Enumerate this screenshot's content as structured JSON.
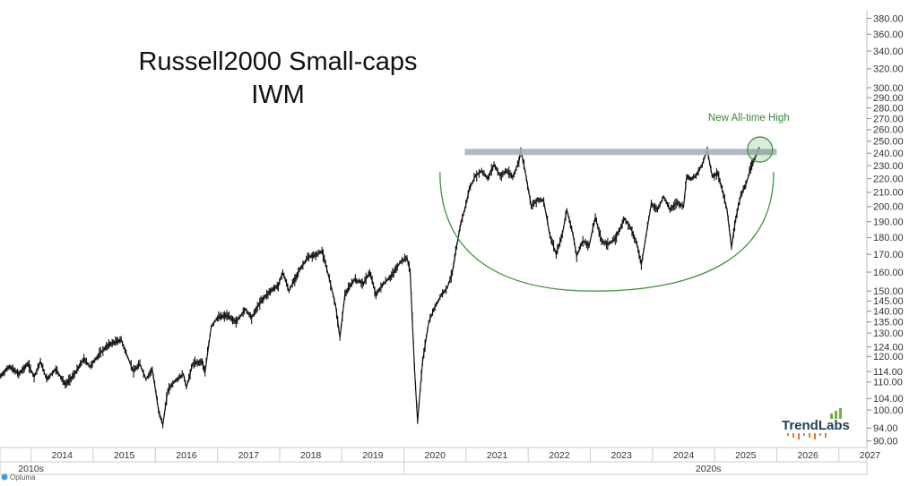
{
  "chart_data": {
    "type": "line",
    "title": "Russell2000 Small-caps",
    "subtitle": "IWM",
    "y_scale": "log",
    "ylim": [
      88,
      390
    ],
    "xlim": [
      2013.5,
      2027.45
    ],
    "y_ticks": [
      90,
      94,
      100,
      104,
      110,
      114,
      120,
      124,
      130,
      135,
      140,
      145,
      150,
      160,
      170,
      180,
      190,
      200,
      210,
      220,
      230,
      240,
      250,
      260,
      270,
      280,
      290,
      300,
      320,
      340,
      360,
      380
    ],
    "y_tick_labels": [
      "90.00",
      "94.00",
      "100.00",
      "104.00",
      "110.00",
      "114.00",
      "120.00",
      "124.00",
      "130.00",
      "135.00",
      "140.00",
      "145.00",
      "150.00",
      "160.00",
      "170.00",
      "180.00",
      "190.00",
      "200.00",
      "210.00",
      "220.00",
      "230.00",
      "240.00",
      "250.00",
      "260.00",
      "270.00",
      "280.00",
      "290.00",
      "300.00",
      "320.00",
      "340.00",
      "360.00",
      "380.00"
    ],
    "x_year_labels": [
      "2014",
      "2015",
      "2016",
      "2017",
      "2018",
      "2019",
      "2020",
      "2021",
      "2022",
      "2023",
      "2024",
      "2025",
      "2026",
      "2027"
    ],
    "x_decade_labels": [
      "2010s",
      "2020s"
    ],
    "series": [
      {
        "values": [
          [
            2013.5,
            112
          ],
          [
            2013.65,
            116
          ],
          [
            2013.8,
            113
          ],
          [
            2013.95,
            117
          ],
          [
            2014.05,
            112
          ],
          [
            2014.15,
            118
          ],
          [
            2014.25,
            111
          ],
          [
            2014.4,
            115
          ],
          [
            2014.55,
            109
          ],
          [
            2014.7,
            113
          ],
          [
            2014.85,
            119
          ],
          [
            2014.95,
            116
          ],
          [
            2015.1,
            121
          ],
          [
            2015.25,
            125
          ],
          [
            2015.45,
            127
          ],
          [
            2015.55,
            120
          ],
          [
            2015.65,
            114
          ],
          [
            2015.75,
            117
          ],
          [
            2015.85,
            111
          ],
          [
            2015.95,
            115
          ],
          [
            2016.05,
            100
          ],
          [
            2016.12,
            95
          ],
          [
            2016.2,
            107
          ],
          [
            2016.3,
            110
          ],
          [
            2016.45,
            113
          ],
          [
            2016.5,
            108
          ],
          [
            2016.6,
            117
          ],
          [
            2016.75,
            118
          ],
          [
            2016.8,
            114
          ],
          [
            2016.9,
            133
          ],
          [
            2017.0,
            137
          ],
          [
            2017.15,
            138
          ],
          [
            2017.3,
            135
          ],
          [
            2017.45,
            141
          ],
          [
            2017.55,
            137
          ],
          [
            2017.7,
            145
          ],
          [
            2017.85,
            150
          ],
          [
            2017.98,
            153
          ],
          [
            2018.05,
            160
          ],
          [
            2018.15,
            150
          ],
          [
            2018.3,
            160
          ],
          [
            2018.45,
            168
          ],
          [
            2018.6,
            170
          ],
          [
            2018.68,
            172
          ],
          [
            2018.78,
            159
          ],
          [
            2018.9,
            143
          ],
          [
            2018.97,
            128
          ],
          [
            2019.05,
            148
          ],
          [
            2019.2,
            156
          ],
          [
            2019.35,
            154
          ],
          [
            2019.45,
            160
          ],
          [
            2019.55,
            148
          ],
          [
            2019.65,
            153
          ],
          [
            2019.8,
            158
          ],
          [
            2019.95,
            166
          ],
          [
            2020.05,
            168
          ],
          [
            2020.1,
            160
          ],
          [
            2020.17,
            115
          ],
          [
            2020.22,
            96
          ],
          [
            2020.3,
            118
          ],
          [
            2020.4,
            135
          ],
          [
            2020.5,
            142
          ],
          [
            2020.6,
            148
          ],
          [
            2020.7,
            152
          ],
          [
            2020.78,
            160
          ],
          [
            2020.85,
            175
          ],
          [
            2020.92,
            190
          ],
          [
            2020.98,
            198
          ],
          [
            2021.05,
            212
          ],
          [
            2021.15,
            222
          ],
          [
            2021.25,
            226
          ],
          [
            2021.35,
            220
          ],
          [
            2021.45,
            231
          ],
          [
            2021.55,
            222
          ],
          [
            2021.65,
            226
          ],
          [
            2021.75,
            221
          ],
          [
            2021.85,
            233
          ],
          [
            2021.88,
            243
          ],
          [
            2021.95,
            226
          ],
          [
            2022.05,
            200
          ],
          [
            2022.15,
            205
          ],
          [
            2022.25,
            204
          ],
          [
            2022.35,
            181
          ],
          [
            2022.45,
            170
          ],
          [
            2022.55,
            182
          ],
          [
            2022.62,
            198
          ],
          [
            2022.72,
            182
          ],
          [
            2022.78,
            169
          ],
          [
            2022.88,
            178
          ],
          [
            2022.98,
            175
          ],
          [
            2023.08,
            193
          ],
          [
            2023.18,
            178
          ],
          [
            2023.28,
            176
          ],
          [
            2023.4,
            179
          ],
          [
            2023.55,
            192
          ],
          [
            2023.65,
            186
          ],
          [
            2023.75,
            176
          ],
          [
            2023.82,
            164
          ],
          [
            2023.9,
            182
          ],
          [
            2023.98,
            202
          ],
          [
            2024.08,
            198
          ],
          [
            2024.18,
            207
          ],
          [
            2024.28,
            198
          ],
          [
            2024.4,
            203
          ],
          [
            2024.5,
            200
          ],
          [
            2024.55,
            222
          ],
          [
            2024.62,
            220
          ],
          [
            2024.7,
            222
          ],
          [
            2024.8,
            231
          ],
          [
            2024.88,
            243
          ],
          [
            2024.96,
            222
          ],
          [
            2025.05,
            224
          ],
          [
            2025.12,
            212
          ],
          [
            2025.2,
            198
          ],
          [
            2025.27,
            174
          ],
          [
            2025.34,
            192
          ],
          [
            2025.42,
            208
          ],
          [
            2025.5,
            215
          ],
          [
            2025.58,
            228
          ],
          [
            2025.65,
            236
          ],
          [
            2025.72,
            245
          ]
        ]
      }
    ],
    "shapes": [
      {
        "kind": "resistance-line",
        "x_start": 2020.98,
        "x_end": 2026.0,
        "y": 241,
        "color": "#a9b3bd"
      },
      {
        "kind": "rounded-base-arc",
        "x_start": 2020.58,
        "y_start": 225,
        "x_bottom": 2023.05,
        "y_bottom": 150,
        "x_end": 2025.95,
        "y_end": 225,
        "color": "#3c963c"
      },
      {
        "kind": "highlight-circle",
        "x": 2025.73,
        "y": 243,
        "color": "#3c963c"
      }
    ],
    "annotations": [
      {
        "text": "New All-time High",
        "x": 2025.55,
        "y": 268,
        "color": "#2f8f2f"
      }
    ]
  },
  "branding": {
    "logo_text": "TrendLabs",
    "footer": "Optuma"
  },
  "colors": {
    "price": "#111111",
    "axis": "#bbbbbb",
    "grid": "#dddddd"
  }
}
